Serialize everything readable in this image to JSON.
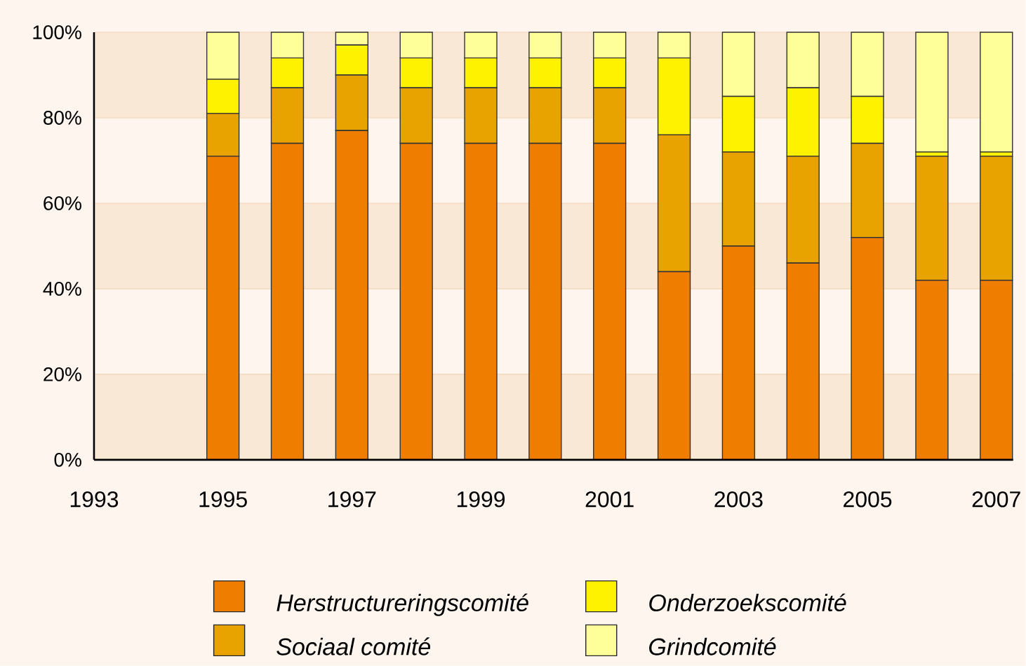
{
  "chart_data": {
    "type": "bar",
    "stacked": true,
    "categories": [
      "1993",
      null,
      "1995",
      null,
      "1997",
      null,
      "1999",
      null,
      "2001",
      null,
      "2003",
      null,
      "2005",
      null,
      "2007"
    ],
    "series": [
      {
        "name": "Herstructureringscomité",
        "color": "#ef7d00",
        "values": [
          null,
          null,
          71,
          74,
          77,
          74,
          74,
          74,
          74,
          44,
          50,
          46,
          52,
          42,
          42
        ]
      },
      {
        "name": "Sociaal comité",
        "color": "#e8a300",
        "values": [
          null,
          null,
          10,
          13,
          13,
          13,
          13,
          13,
          13,
          32,
          22,
          25,
          22,
          29,
          29
        ]
      },
      {
        "name": "Onderzoekscomité",
        "color": "#fff200",
        "values": [
          null,
          null,
          8,
          7,
          7,
          7,
          7,
          7,
          7,
          18,
          13,
          16,
          11,
          1,
          1
        ]
      },
      {
        "name": "Grindcomité",
        "color": "#ffff99",
        "values": [
          null,
          null,
          11,
          6,
          3,
          6,
          6,
          6,
          6,
          6,
          15,
          13,
          15,
          28,
          28
        ]
      }
    ],
    "ylim": [
      0,
      100
    ],
    "yticks": [
      {
        "value": 0,
        "label": "0%"
      },
      {
        "value": 20,
        "label": "20%"
      },
      {
        "value": 40,
        "label": "40%"
      },
      {
        "value": 60,
        "label": "60%"
      },
      {
        "value": 80,
        "label": "80%"
      },
      {
        "value": 100,
        "label": "100%"
      }
    ],
    "grid": "y",
    "legend": "bottom"
  }
}
